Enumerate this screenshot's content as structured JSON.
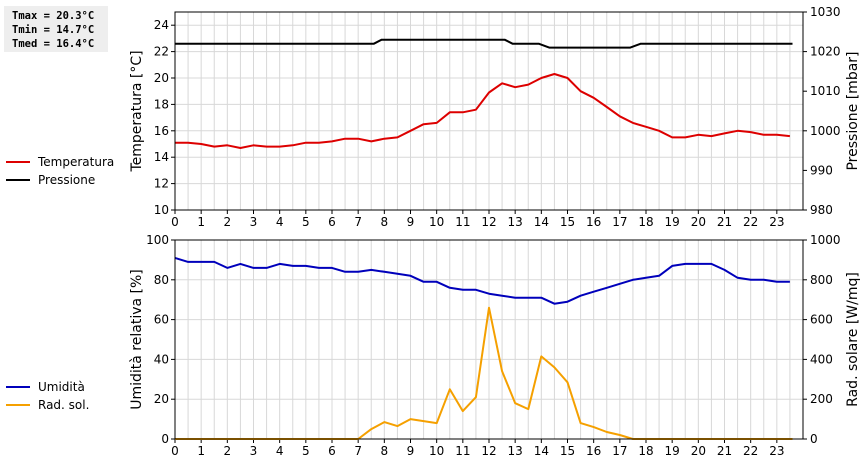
{
  "stats": {
    "tmax": "Tmax = 20.3°C",
    "tmin": "Tmin = 14.7°C",
    "tmed": "Tmed = 16.4°C"
  },
  "colors": {
    "temperature": "#dd0000",
    "pressure": "#000000",
    "humidity": "#0000bb",
    "radiation": "#f5a000",
    "grid": "#d8d8d8"
  },
  "legend_top": [
    {
      "label": "Temperatura",
      "color": "#dd0000"
    },
    {
      "label": "Pressione",
      "color": "#000000"
    }
  ],
  "legend_bottom": [
    {
      "label": "Umidità",
      "color": "#0000bb"
    },
    {
      "label": "Rad. sol.",
      "color": "#f5a000"
    }
  ],
  "chart_data": [
    {
      "type": "line",
      "xlabel": "",
      "ylabel": "Temperatura [°C]",
      "y2label": "Pressione [mbar]",
      "xlim": [
        0,
        24
      ],
      "xticks": [
        0,
        1,
        2,
        3,
        4,
        5,
        6,
        7,
        8,
        9,
        10,
        11,
        12,
        13,
        14,
        15,
        16,
        17,
        18,
        19,
        20,
        21,
        22,
        23
      ],
      "ylim": [
        10,
        25
      ],
      "yticks": [
        10,
        12,
        14,
        16,
        18,
        20,
        22,
        24
      ],
      "y2lim": [
        980,
        1030
      ],
      "y2ticks": [
        980,
        990,
        1000,
        1010,
        1020,
        1030
      ],
      "grid": true,
      "series": [
        {
          "name": "Temperatura",
          "axis": "left",
          "x": [
            0,
            0.5,
            1,
            1.5,
            2,
            2.5,
            3,
            3.5,
            4,
            4.5,
            5,
            5.5,
            6,
            6.5,
            7,
            7.5,
            8,
            8.5,
            9,
            9.5,
            10,
            10.5,
            11,
            11.5,
            12,
            12.5,
            13,
            13.5,
            14,
            14.5,
            15,
            15.5,
            16,
            16.5,
            17,
            17.5,
            18,
            18.5,
            19,
            19.5,
            20,
            20.5,
            21,
            21.5,
            22,
            22.5,
            23,
            23.5
          ],
          "values": [
            15.1,
            15.1,
            15.0,
            14.8,
            14.9,
            14.7,
            14.9,
            14.8,
            14.8,
            14.9,
            15.1,
            15.1,
            15.2,
            15.4,
            15.4,
            15.2,
            15.4,
            15.5,
            16.0,
            16.5,
            16.6,
            17.4,
            17.4,
            17.6,
            18.9,
            19.6,
            19.3,
            19.5,
            20.0,
            20.3,
            20.0,
            19.0,
            18.5,
            17.8,
            17.1,
            16.6,
            16.3,
            16.0,
            15.5,
            15.5,
            15.7,
            15.6,
            15.8,
            16.0,
            15.9,
            15.7,
            15.7,
            15.6
          ]
        },
        {
          "name": "Pressione",
          "axis": "right",
          "x": [
            0,
            7.6,
            7.9,
            12.6,
            12.9,
            13.9,
            14.3,
            17.4,
            17.8,
            23.6
          ],
          "values": [
            1022,
            1022,
            1023,
            1023,
            1022,
            1022,
            1021,
            1021,
            1022,
            1022
          ]
        }
      ]
    },
    {
      "type": "line",
      "xlabel": "",
      "ylabel": "Umidità relativa [%]",
      "y2label": "Rad. solare [W/mq]",
      "xlim": [
        0,
        24
      ],
      "xticks": [
        0,
        1,
        2,
        3,
        4,
        5,
        6,
        7,
        8,
        9,
        10,
        11,
        12,
        13,
        14,
        15,
        16,
        17,
        18,
        19,
        20,
        21,
        22,
        23
      ],
      "ylim": [
        0,
        100
      ],
      "yticks": [
        0,
        20,
        40,
        60,
        80,
        100
      ],
      "y2lim": [
        0,
        1000
      ],
      "y2ticks": [
        0,
        200,
        400,
        600,
        800,
        1000
      ],
      "grid": true,
      "series": [
        {
          "name": "Umidità",
          "axis": "left",
          "x": [
            0,
            0.5,
            1,
            1.5,
            2,
            2.5,
            3,
            3.5,
            4,
            4.5,
            5,
            5.5,
            6,
            6.5,
            7,
            7.5,
            8,
            8.5,
            9,
            9.5,
            10,
            10.5,
            11,
            11.5,
            12,
            12.5,
            13,
            13.5,
            14,
            14.5,
            15,
            15.5,
            16,
            16.5,
            17,
            17.5,
            18,
            18.5,
            19,
            19.5,
            20,
            20.5,
            21,
            21.5,
            22,
            22.5,
            23,
            23.5
          ],
          "values": [
            91,
            89,
            89,
            89,
            86,
            88,
            86,
            86,
            88,
            87,
            87,
            86,
            86,
            84,
            84,
            85,
            84,
            83,
            82,
            79,
            79,
            76,
            75,
            75,
            73,
            72,
            71,
            71,
            71,
            68,
            69,
            72,
            74,
            76,
            78,
            80,
            81,
            82,
            87,
            88,
            88,
            88,
            85,
            81,
            80,
            80,
            79,
            79
          ]
        },
        {
          "name": "Rad. sol.",
          "axis": "right",
          "x": [
            0,
            7,
            7.5,
            8,
            8.5,
            9,
            9.5,
            10,
            10.5,
            11,
            11.5,
            12,
            12.5,
            13,
            13.5,
            14,
            14.5,
            15,
            15.5,
            16,
            16.5,
            17,
            17.5,
            18,
            23.6
          ],
          "values": [
            0,
            0,
            50,
            85,
            65,
            100,
            90,
            80,
            250,
            140,
            210,
            660,
            340,
            180,
            150,
            415,
            360,
            285,
            80,
            60,
            35,
            20,
            0,
            0,
            0
          ]
        }
      ]
    }
  ]
}
